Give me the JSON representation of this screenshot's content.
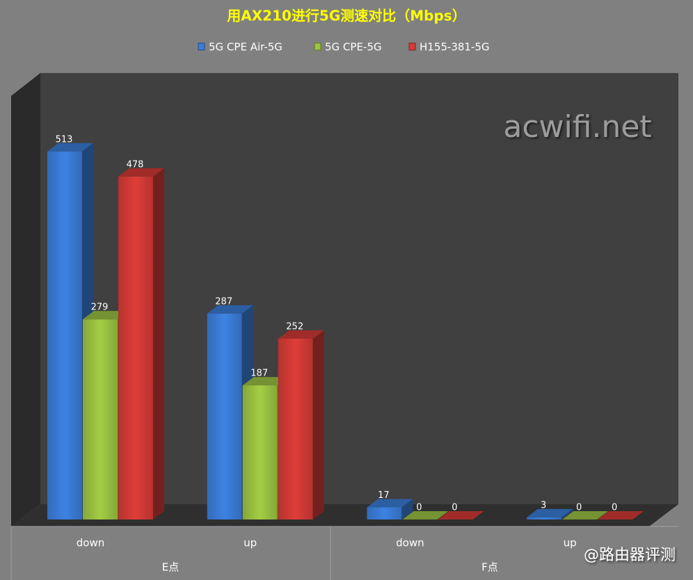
{
  "chart_data": {
    "type": "bar3d",
    "title": "用AX210进行5G测速对比（Mbps）",
    "categories": [
      "down",
      "up",
      "down",
      "up"
    ],
    "groups": [
      "E点",
      "F点"
    ],
    "series": [
      {
        "name": "5G CPE Air-5G",
        "color": "#3b7dd8",
        "values": [
          513,
          287,
          17,
          3
        ]
      },
      {
        "name": "5G CPE-5G",
        "color": "#9cc442",
        "values": [
          279,
          187,
          0,
          0
        ]
      },
      {
        "name": "H155-381-5G",
        "color": "#d43b36",
        "values": [
          478,
          252,
          0,
          0
        ]
      }
    ],
    "ylim": [
      0,
      600
    ],
    "legend": "top",
    "annotations": [
      "acwifi.net",
      "@路由器评测"
    ]
  }
}
